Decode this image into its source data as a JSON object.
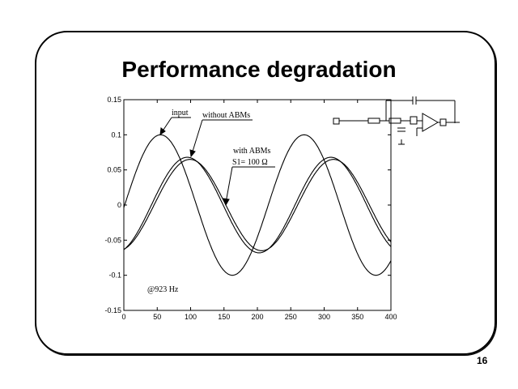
{
  "slide": {
    "title": "Performance degradation",
    "page_number": "16"
  },
  "chart_data": {
    "type": "line",
    "xlim": [
      0,
      400
    ],
    "ylim": [
      -0.15,
      0.15
    ],
    "xticks": [
      0,
      50,
      100,
      150,
      200,
      250,
      300,
      350,
      400
    ],
    "yticks": [
      0.15,
      0.1,
      0.05,
      0,
      -0.05,
      -0.1,
      -0.15
    ],
    "ytick_labels": [
      "0.15",
      "0.1",
      "0.05",
      "0",
      "-0.05",
      "-0.1",
      "-0.15"
    ],
    "grid": false,
    "series": [
      {
        "name": "input",
        "amplitude": 0.1,
        "period": 215,
        "peak_x": 55
      },
      {
        "name": "without ABMs",
        "amplitude": 0.068,
        "period": 215,
        "peak_x": 95
      },
      {
        "name": "with ABMs S1=100 Ω",
        "amplitude": 0.065,
        "period": 215,
        "peak_x": 99
      }
    ],
    "annotations": {
      "input": "input",
      "without": "without ABMs",
      "with_line1": "with ABMs",
      "with_line2": "S1= 100 Ω",
      "freq": "@923 Hz"
    }
  }
}
